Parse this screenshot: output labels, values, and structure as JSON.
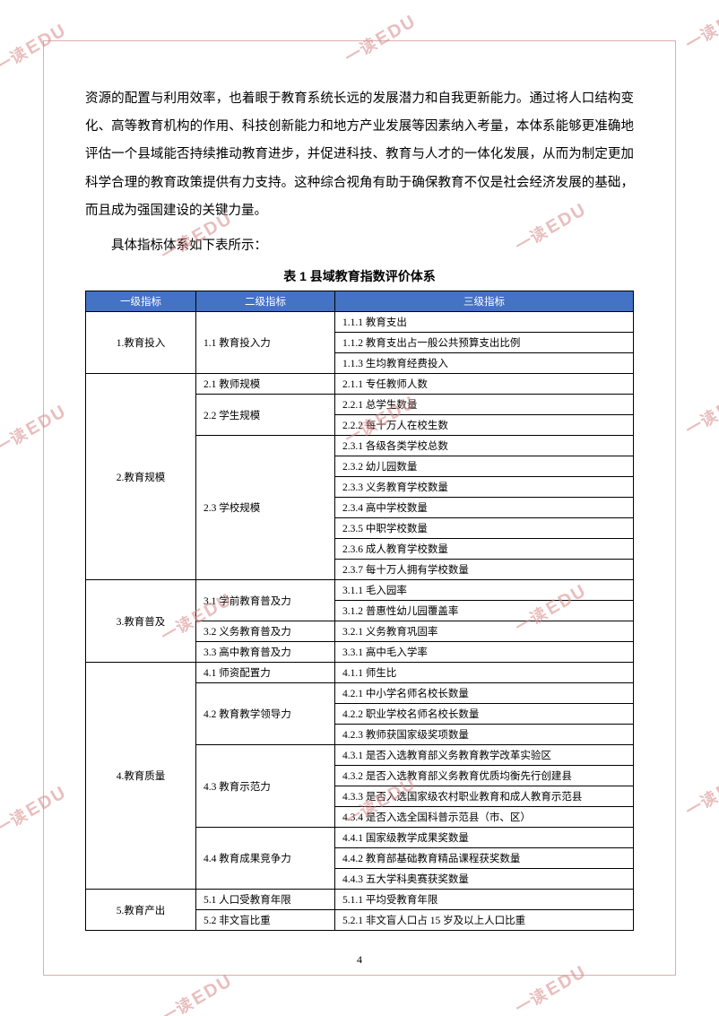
{
  "watermark": {
    "cn": "一读",
    "en": "EDU"
  },
  "paragraph1": "资源的配置与利用效率，也着眼于教育系统长远的发展潜力和自我更新能力。通过将人口结构变化、高等教育机构的作用、科技创新能力和地方产业发展等因素纳入考量，本体系能够更准确地评估一个县域能否持续推动教育进步，并促进科技、教育与人才的一体化发展，从而为制定更加科学合理的教育政策提供有力支持。这种综合视角有助于确保教育不仅是社会经济发展的基础，而且成为强国建设的关键力量。",
  "paragraph2": "具体指标体系如下表所示：",
  "table_title": "表 1 县域教育指数评价体系",
  "headers": {
    "c1": "一级指标",
    "c2": "二级指标",
    "c3": "三级指标"
  },
  "rows": [
    {
      "l1": "1.教育投入",
      "l1_span": 3,
      "l2": "1.1 教育投入力",
      "l2_span": 3,
      "l3": "1.1.1 教育支出"
    },
    {
      "l3": "1.1.2 教育支出占一般公共预算支出比例"
    },
    {
      "l3": "1.1.3 生均教育经费投入"
    },
    {
      "l1": "2.教育规模",
      "l1_span": 10,
      "l2": "2.1 教师规模",
      "l2_span": 1,
      "l3": "2.1.1 专任教师人数"
    },
    {
      "l2": "2.2 学生规模",
      "l2_span": 2,
      "l3": "2.2.1 总学生数量"
    },
    {
      "l3": "2.2.2 每十万人在校生数"
    },
    {
      "l2": "2.3 学校规模",
      "l2_span": 7,
      "l3": "2.3.1 各级各类学校总数"
    },
    {
      "l3": "2.3.2 幼儿园数量"
    },
    {
      "l3": "2.3.3 义务教育学校数量"
    },
    {
      "l3": "2.3.4 高中学校数量"
    },
    {
      "l3": "2.3.5 中职学校数量"
    },
    {
      "l3": "2.3.6 成人教育学校数量"
    },
    {
      "l3": "2.3.7 每十万人拥有学校数量"
    },
    {
      "l1": "3.教育普及",
      "l1_span": 4,
      "l2": "3.1 学前教育普及力",
      "l2_span": 2,
      "l3": "3.1.1 毛入园率"
    },
    {
      "l3": "3.1.2 普惠性幼儿园覆盖率"
    },
    {
      "l2": "3.2 义务教育普及力",
      "l2_span": 1,
      "l3": "3.2.1 义务教育巩固率"
    },
    {
      "l2": "3.3 高中教育普及力",
      "l2_span": 1,
      "l3": "3.3.1 高中毛入学率"
    },
    {
      "l1": "4.教育质量",
      "l1_span": 11,
      "l2": "4.1 师资配置力",
      "l2_span": 1,
      "l3": "4.1.1 师生比"
    },
    {
      "l2": "4.2 教育教学领导力",
      "l2_span": 3,
      "l3": "4.2.1 中小学名师名校长数量"
    },
    {
      "l3": "4.2.2 职业学校名师名校长数量"
    },
    {
      "l3": "4.2.3 教师获国家级奖项数量"
    },
    {
      "l2": "4.3 教育示范力",
      "l2_span": 4,
      "l3": "4.3.1 是否入选教育部义务教育教学改革实验区"
    },
    {
      "l3": "4.3.2 是否入选教育部义务教育优质均衡先行创建县"
    },
    {
      "l3": "4.3.3 是否入选国家级农村职业教育和成人教育示范县"
    },
    {
      "l3": "4.3.4 是否入选全国科普示范县（市、区）"
    },
    {
      "l2": "4.4 教育成果竞争力",
      "l2_span": 3,
      "l3": "4.4.1 国家级教学成果奖数量"
    },
    {
      "l3": "4.4.2 教育部基础教育精品课程获奖数量"
    },
    {
      "l3": "4.4.3 五大学科奥赛获奖数量"
    },
    {
      "l1": "5.教育产出",
      "l1_span": 2,
      "l2": "5.1 人口受教育年限",
      "l2_span": 1,
      "l3": "5.1.1 平均受教育年限"
    },
    {
      "l2": "5.2 非文盲比重",
      "l2_span": 1,
      "l3": "5.2.1 非文盲人口占 15 岁及以上人口比重"
    }
  ],
  "page_number": "4",
  "colors": {
    "header_bg": "#4472c4",
    "watermark": "#d88a8a",
    "frame": "#d8b0b0"
  }
}
